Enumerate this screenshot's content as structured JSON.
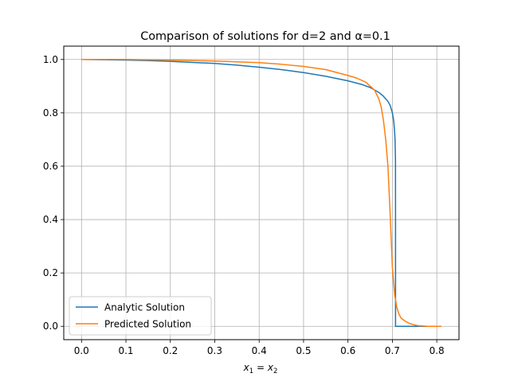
{
  "chart_data": {
    "type": "line",
    "title": "Comparison of solutions for d=2 and α=0.1",
    "xlabel": {
      "main": "x",
      "sub1": "1",
      "eq": " = ",
      "main2": "x",
      "sub2": "2"
    },
    "ylabel": "",
    "xlim": [
      -0.04,
      0.85
    ],
    "ylim": [
      -0.05,
      1.05
    ],
    "xticks": [
      0.0,
      0.1,
      0.2,
      0.3,
      0.4,
      0.5,
      0.6,
      0.7,
      0.8
    ],
    "xtick_labels": [
      "0.0",
      "0.1",
      "0.2",
      "0.3",
      "0.4",
      "0.5",
      "0.6",
      "0.7",
      "0.8"
    ],
    "yticks": [
      0.0,
      0.2,
      0.4,
      0.6,
      0.8,
      1.0
    ],
    "ytick_labels": [
      "0.0",
      "0.2",
      "0.4",
      "0.6",
      "0.8",
      "1.0"
    ],
    "grid": true,
    "legend_position": "lower-left",
    "series": [
      {
        "name": "Analytic Solution",
        "color": "#1f77b4",
        "x": [
          0.0,
          0.05,
          0.1,
          0.15,
          0.2,
          0.25,
          0.3,
          0.35,
          0.4,
          0.45,
          0.5,
          0.55,
          0.6,
          0.63,
          0.65,
          0.67,
          0.68,
          0.69,
          0.695,
          0.7,
          0.703,
          0.705,
          0.706,
          0.707,
          0.7071,
          0.7071,
          0.81
        ],
        "y": [
          1.0,
          0.999,
          0.998,
          0.996,
          0.993,
          0.989,
          0.985,
          0.979,
          0.971,
          0.962,
          0.951,
          0.937,
          0.92,
          0.907,
          0.895,
          0.876,
          0.862,
          0.843,
          0.828,
          0.8,
          0.77,
          0.73,
          0.7,
          0.62,
          0.4,
          0.0,
          0.0
        ]
      },
      {
        "name": "Predicted Solution",
        "color": "#ff7f0e",
        "x": [
          0.0,
          0.1,
          0.2,
          0.3,
          0.4,
          0.45,
          0.5,
          0.55,
          0.6,
          0.62,
          0.64,
          0.66,
          0.67,
          0.675,
          0.68,
          0.685,
          0.69,
          0.695,
          0.7,
          0.705,
          0.71,
          0.715,
          0.72,
          0.73,
          0.74,
          0.75,
          0.76,
          0.78,
          0.8,
          0.81
        ],
        "y": [
          1.0,
          1.0,
          0.998,
          0.994,
          0.988,
          0.982,
          0.974,
          0.962,
          0.94,
          0.93,
          0.915,
          0.885,
          0.85,
          0.82,
          0.77,
          0.7,
          0.6,
          0.42,
          0.22,
          0.12,
          0.07,
          0.045,
          0.03,
          0.018,
          0.01,
          0.005,
          0.002,
          0.0,
          0.0,
          0.0
        ]
      }
    ]
  }
}
